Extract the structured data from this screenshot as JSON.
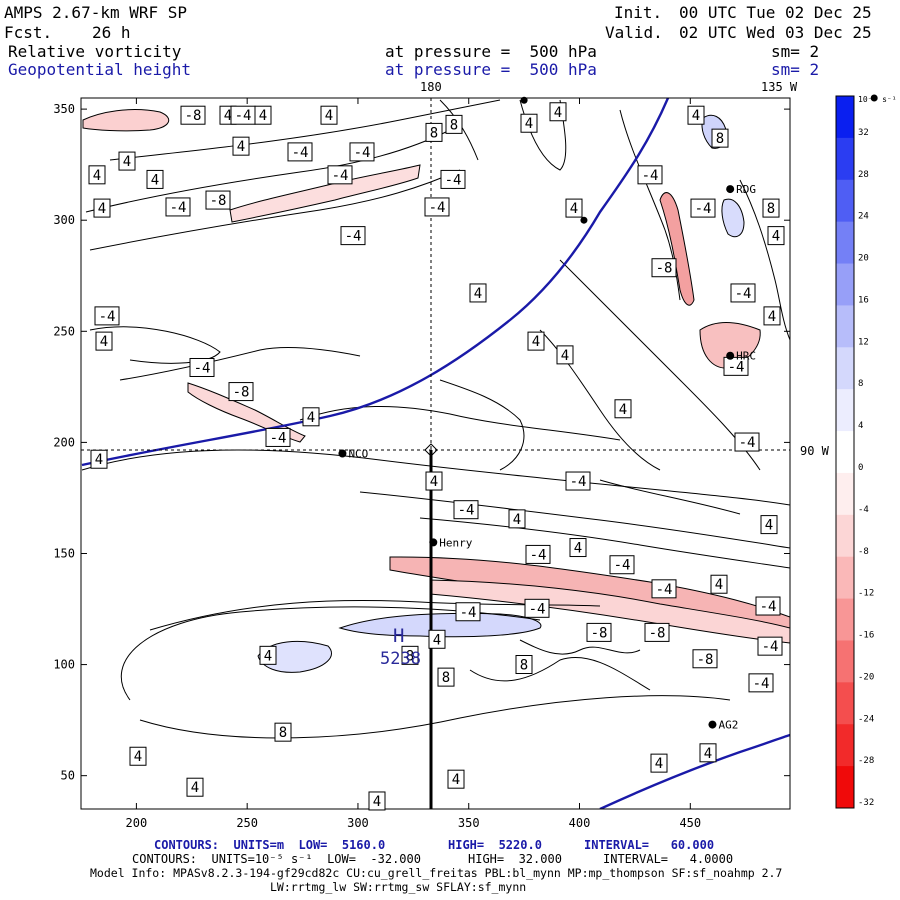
{
  "header": {
    "model": "AMPS 2.67-km WRF SP",
    "fcst_label": "Fcst.",
    "fcst_value": "26 h",
    "init_label": "Init.",
    "init_value": "00 UTC Tue 02 Dec 25",
    "valid_label": "Valid.",
    "valid_value": "02 UTC Wed 03 Dec 25",
    "field1": "Relative vorticity",
    "field1_pressure": "at pressure =  500 hPa",
    "field1_sm": "sm= 2",
    "field2": "Geopotential height",
    "field2_pressure": "at pressure =  500 hPa",
    "field2_sm": "sm= 2"
  },
  "map_labels": {
    "top_meridian": "180",
    "top_right_meridian": "135 W",
    "right_meridian": "90 W",
    "high_letter": "H",
    "high_value": "5238"
  },
  "stations": [
    {
      "name": "RDG",
      "x": 468,
      "y": 314
    },
    {
      "name": "HRC",
      "x": 468,
      "y": 239
    },
    {
      "name": "NCO",
      "x": 293,
      "y": 195
    },
    {
      "name": "Henry",
      "x": 334,
      "y": 155
    },
    {
      "name": "AG2",
      "x": 460,
      "y": 73
    }
  ],
  "colorbar": {
    "unit": "10⁻⁵ s⁻¹",
    "ticks": [
      "32",
      "28",
      "24",
      "20",
      "16",
      "12",
      "8",
      "4",
      "0",
      "-4",
      "-8",
      "-12",
      "-16",
      "-20",
      "-24",
      "-28",
      "-32"
    ],
    "colors": [
      "#0a1ff0",
      "#2b3df2",
      "#4f5ef4",
      "#7480f6",
      "#979ff8",
      "#b7bdfa",
      "#d4d8fc",
      "#ecedfe",
      "#ffffff",
      "#feeeee",
      "#fcd6d6",
      "#fab8b8",
      "#f89696",
      "#f67272",
      "#f44e4e",
      "#f22a2a",
      "#f00a0a"
    ]
  },
  "chart_data": {
    "type": "contour",
    "title": "Relative vorticity and Geopotential height at 500 hPa",
    "xlim": [
      175,
      495
    ],
    "ylim": [
      35,
      355
    ],
    "x_ticks": [
      200,
      250,
      300,
      350,
      400,
      450
    ],
    "y_ticks": [
      50,
      100,
      150,
      200,
      250,
      300,
      350
    ],
    "vorticity_contour_labels": [
      {
        "v": "-8",
        "x": 193,
        "y": 345
      },
      {
        "v": "4",
        "x": 228,
        "y": 345
      },
      {
        "v": "-4",
        "x": 243,
        "y": 345
      },
      {
        "v": "4",
        "x": 263,
        "y": 345
      },
      {
        "v": "4",
        "x": 329,
        "y": 345
      },
      {
        "v": "8",
        "x": 454,
        "y": 337
      },
      {
        "v": "4",
        "x": 529,
        "y": 338
      },
      {
        "v": "8",
        "x": 434,
        "y": 330
      },
      {
        "v": "4",
        "x": 558,
        "y": 348
      },
      {
        "v": "4",
        "x": 696,
        "y": 345
      },
      {
        "v": "8",
        "x": 720,
        "y": 325
      },
      {
        "v": "4",
        "x": 241,
        "y": 318
      },
      {
        "v": "-4",
        "x": 300,
        "y": 313
      },
      {
        "v": "-4",
        "x": 362,
        "y": 313
      },
      {
        "v": "4",
        "x": 127,
        "y": 305
      },
      {
        "v": "4",
        "x": 97,
        "y": 293
      },
      {
        "v": "-4",
        "x": 340,
        "y": 293
      },
      {
        "v": "-4",
        "x": 453,
        "y": 289
      },
      {
        "v": "4",
        "x": 155,
        "y": 289
      },
      {
        "v": "-8",
        "x": 218,
        "y": 271
      },
      {
        "v": "-4",
        "x": 178,
        "y": 265
      },
      {
        "v": "4",
        "x": 102,
        "y": 264
      },
      {
        "v": "-4",
        "x": 437,
        "y": 265
      },
      {
        "v": "4",
        "x": 574,
        "y": 264
      },
      {
        "v": "-4",
        "x": 650,
        "y": 293
      },
      {
        "v": "-4",
        "x": 703,
        "y": 264
      },
      {
        "v": "8",
        "x": 771,
        "y": 264
      },
      {
        "v": "-4",
        "x": 353,
        "y": 240
      },
      {
        "v": "-8",
        "x": 664,
        "y": 212
      },
      {
        "v": "4",
        "x": 776,
        "y": 240
      },
      {
        "v": "4",
        "x": 478,
        "y": 190
      },
      {
        "v": "-4",
        "x": 743,
        "y": 190
      },
      {
        "v": "-4",
        "x": 107,
        "y": 170
      },
      {
        "v": "4",
        "x": 772,
        "y": 170
      },
      {
        "v": "4",
        "x": 104,
        "y": 148
      },
      {
        "v": "4",
        "x": 536,
        "y": 148
      },
      {
        "v": "4",
        "x": 565,
        "y": 136
      },
      {
        "v": "-4",
        "x": 202,
        "y": 125
      },
      {
        "v": "-4",
        "x": 736,
        "y": 126
      },
      {
        "v": "-8",
        "x": 241,
        "y": 104
      },
      {
        "v": "4",
        "x": 311,
        "y": 82
      },
      {
        "v": "4",
        "x": 623,
        "y": 89
      },
      {
        "v": "-4",
        "x": 278,
        "y": 64
      },
      {
        "v": "-4",
        "x": 747,
        "y": 60
      },
      {
        "v": "4",
        "x": 99,
        "y": 45
      },
      {
        "v": "-4",
        "x": 578,
        "y": 26
      },
      {
        "v": "4",
        "x": 434,
        "y": 26
      },
      {
        "v": "-4",
        "x": 466,
        "y": 1
      },
      {
        "v": "4",
        "x": 517,
        "y": -7
      },
      {
        "v": "4",
        "x": 769,
        "y": -12
      },
      {
        "v": "-4",
        "x": 538,
        "y": -38
      },
      {
        "v": "4",
        "x": 578,
        "y": -32
      },
      {
        "v": "-4",
        "x": 622,
        "y": -47
      },
      {
        "v": "-4",
        "x": 664,
        "y": -68
      },
      {
        "v": "4",
        "x": 719,
        "y": -64
      },
      {
        "v": "-4",
        "x": 768,
        "y": -83
      },
      {
        "v": "-4",
        "x": 468,
        "y": -88
      },
      {
        "v": "-4",
        "x": 537,
        "y": -85
      },
      {
        "v": "-8",
        "x": 599,
        "y": -106
      },
      {
        "v": "-8",
        "x": 657,
        "y": -106
      },
      {
        "v": "-4",
        "x": 770,
        "y": -118
      },
      {
        "v": "-8",
        "x": 705,
        "y": -129
      },
      {
        "v": "-4",
        "x": 761,
        "y": -150
      },
      {
        "v": "4",
        "x": 268,
        "y": -126
      },
      {
        "v": "8",
        "x": 410,
        "y": -126
      },
      {
        "v": "4",
        "x": 437,
        "y": -112
      },
      {
        "v": "8",
        "x": 446,
        "y": -145
      },
      {
        "v": "8",
        "x": 524,
        "y": -134
      },
      {
        "v": "8",
        "x": 283,
        "y": -193
      },
      {
        "v": "4",
        "x": 138,
        "y": -214
      },
      {
        "v": "4",
        "x": 456,
        "y": -234
      },
      {
        "v": "4",
        "x": 659,
        "y": -220
      },
      {
        "v": "4",
        "x": 708,
        "y": -211
      },
      {
        "v": "4",
        "x": 195,
        "y": -241
      },
      {
        "v": "4",
        "x": 377,
        "y": -253
      }
    ],
    "highs": [
      {
        "label": "H",
        "value": "5238",
        "x": 323,
        "y": 117
      }
    ]
  },
  "footer": {
    "line1_prefix": "CONTOURS:  UNITS=m  LOW=  5160.0",
    "line1_high": "HIGH=  5220.0",
    "line1_interval": "INTERVAL=   60.000",
    "line2_prefix": "CONTOURS:  UNITS=10⁻⁵ s⁻¹  LOW=  -32.000",
    "line2_high": "HIGH=  32.000",
    "line2_interval": "INTERVAL=   4.0000",
    "line3": "Model Info: MPASv8.2.3-194-gf29cd82c CU:cu_grell_freitas PBL:bl_mynn MP:mp_thompson SF:sf_noahmp 2.7",
    "line4": "LW:rrtmg_lw SW:rrtmg_sw SFLAY:sf_mynn"
  }
}
